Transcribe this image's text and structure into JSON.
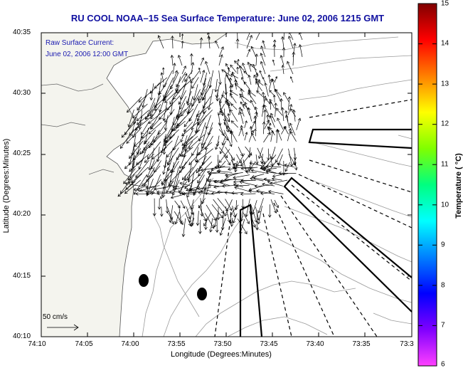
{
  "map": {
    "title": "RU COOL  NOAA–15  Sea Surface Temperature:  June 02, 2006 1215 GMT",
    "annotation_line1": "Raw Surface Current:",
    "annotation_line2": "June 02, 2006 12:00 GMT",
    "x_axis_title": "Longitude (Degrees:Minutes)",
    "y_axis_title": "Latitude (Degrees:Minutes)",
    "x_ticks": [
      "74:10",
      "74:05",
      "74:00",
      "73:55",
      "73:50",
      "73:45",
      "73:40",
      "73:35",
      "73:3"
    ],
    "y_ticks": [
      "40:35",
      "40:30",
      "40:25",
      "40:20",
      "40:15",
      "40:10"
    ],
    "scale_label": "50 cm/s"
  },
  "colorbar": {
    "title": "Temperature ( °C)",
    "ticks": [
      "15",
      "14",
      "13",
      "12",
      "11",
      "10",
      "9",
      "8",
      "7",
      "6"
    ],
    "range": [
      6,
      15
    ],
    "colormap": [
      "#ff40ff",
      "#8000ff",
      "#0000ff",
      "#0080ff",
      "#00ffff",
      "#00ff80",
      "#80ff00",
      "#ffff00",
      "#ff8000",
      "#ff0000",
      "#800000"
    ]
  },
  "features": {
    "land_color": "#f4f4ee",
    "contour_color": "#9a9a9a",
    "vector_color": "#000000",
    "markers": [
      {
        "name": "marker-1",
        "lon": "73:59",
        "lat": "40:14.5"
      },
      {
        "name": "marker-2",
        "lon": "73:52.5",
        "lat": "40:13"
      }
    ]
  }
}
